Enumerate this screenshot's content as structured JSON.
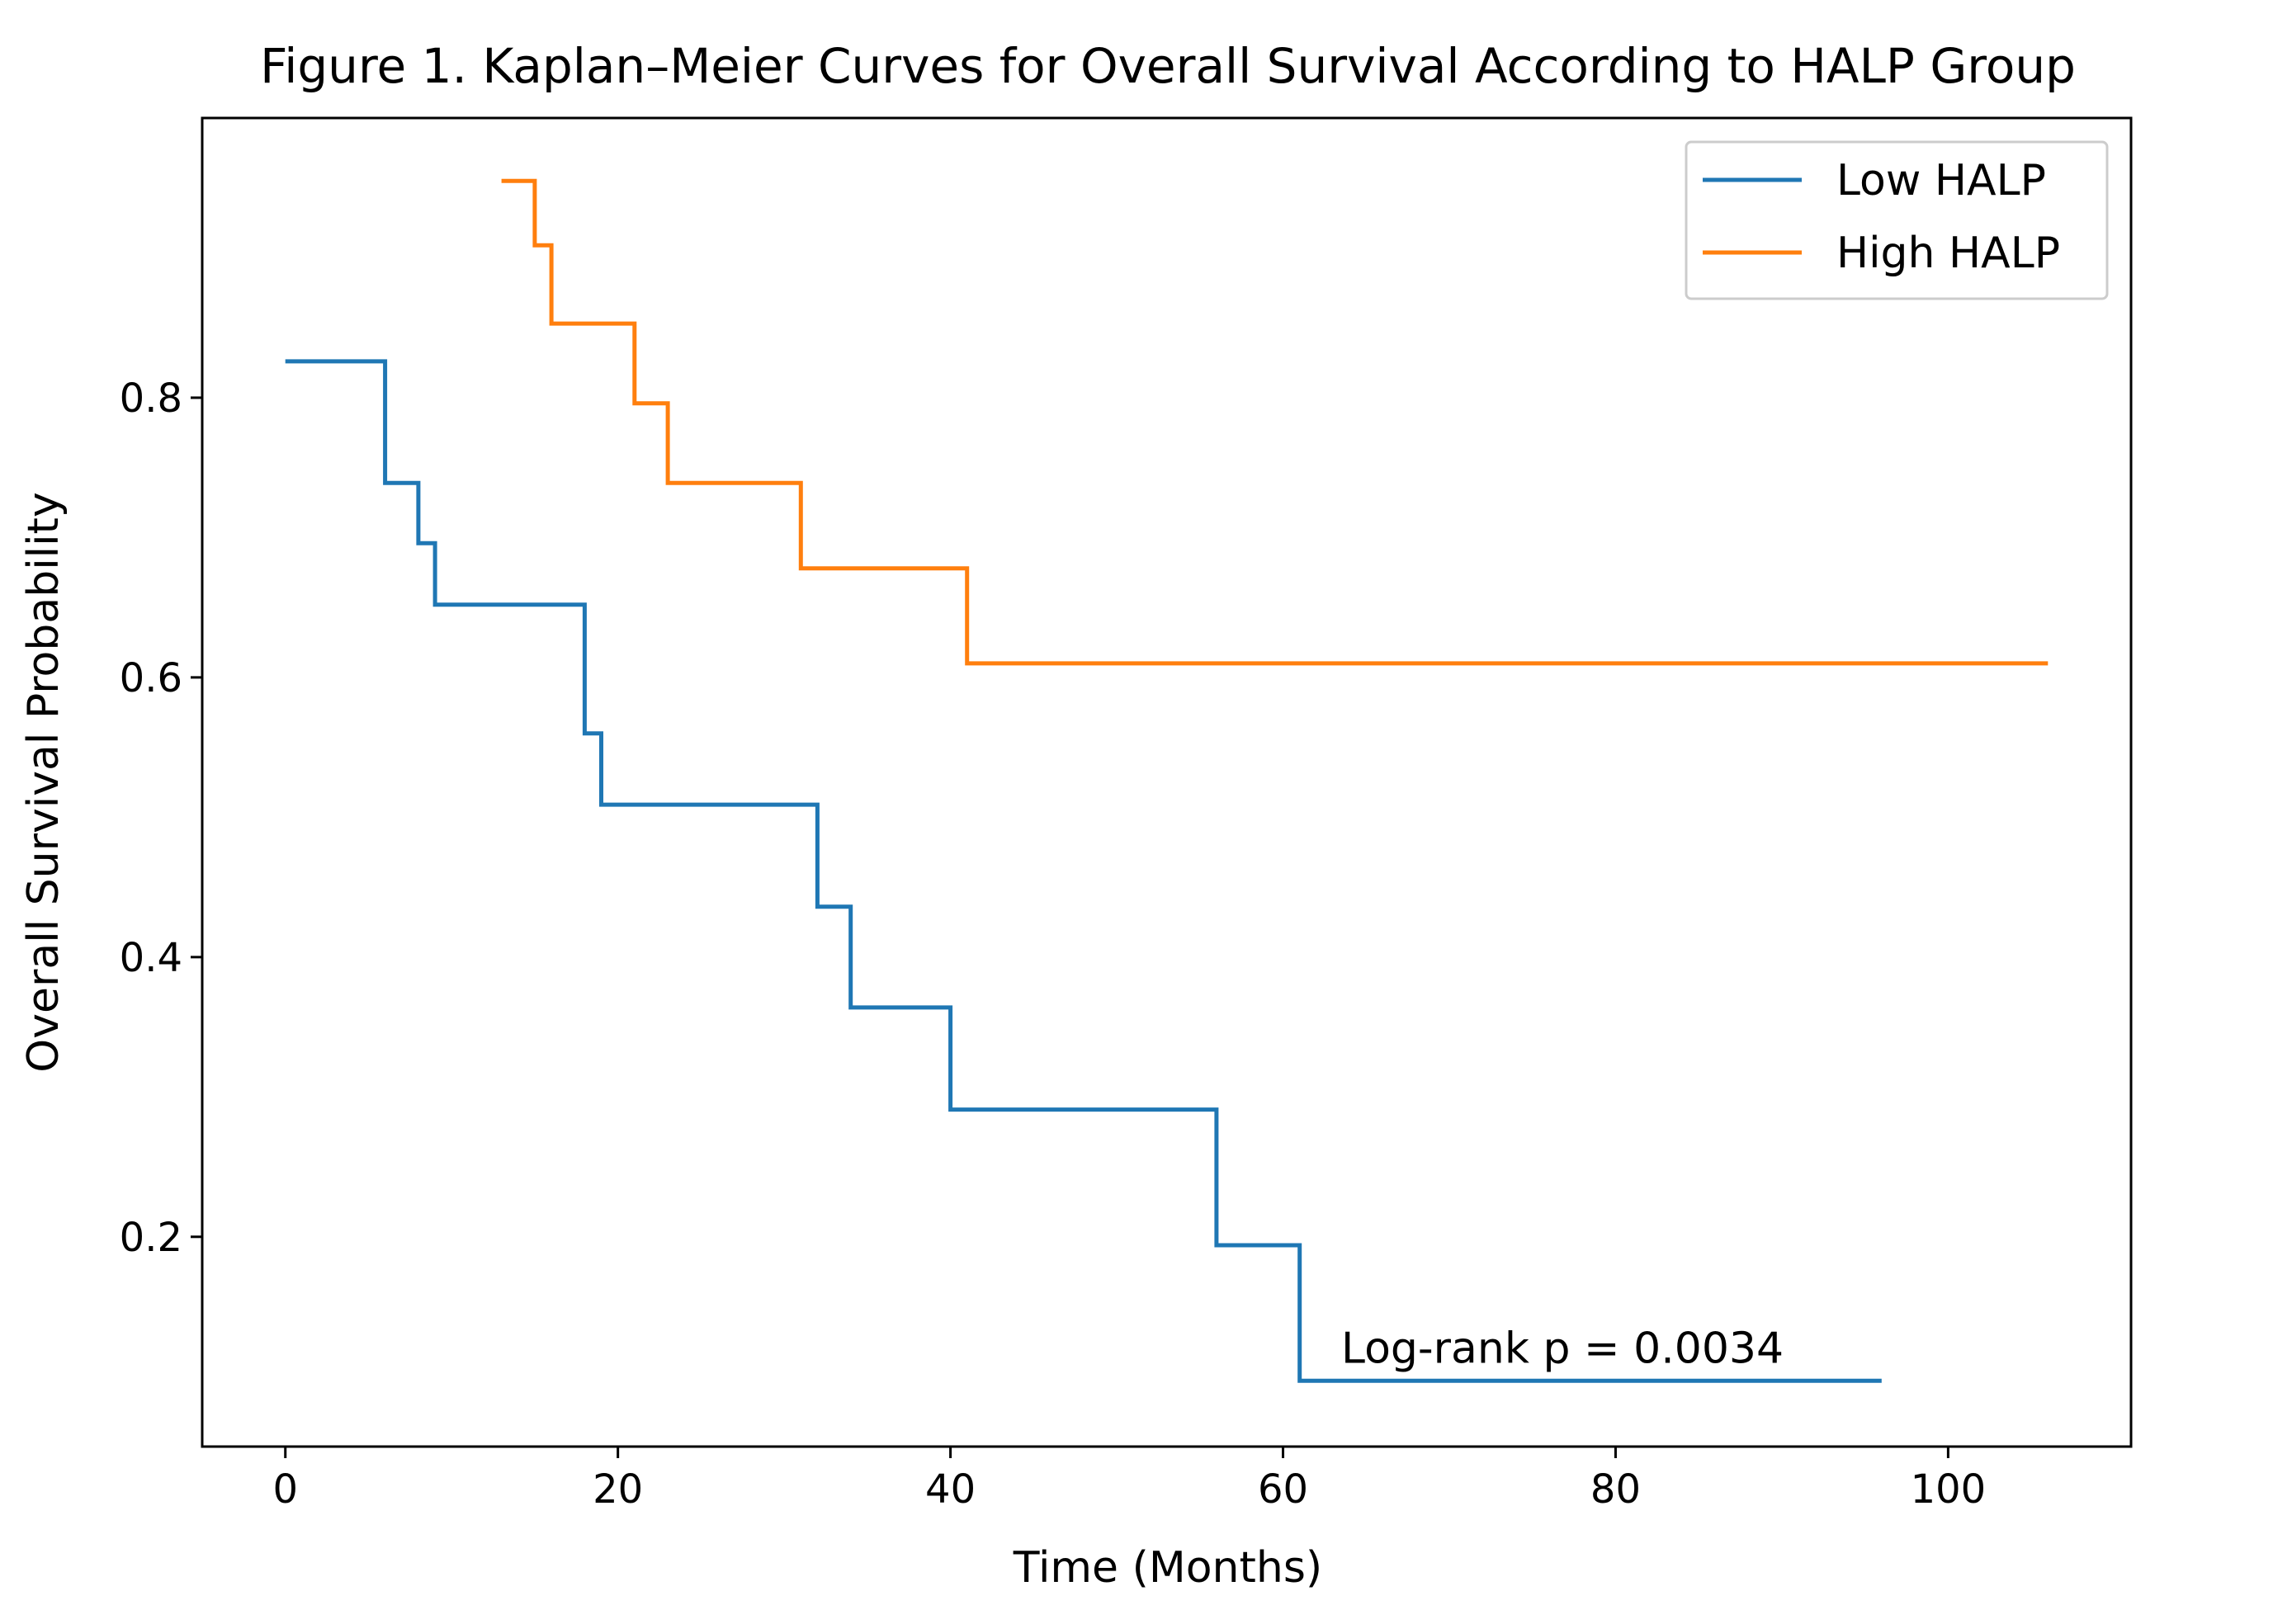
{
  "chart_data": {
    "type": "line",
    "subtype": "step",
    "title": "Figure 1. Kaplan–Meier Curves for Overall Survival According to HALP Group",
    "xlabel": "Time (Months)",
    "ylabel": "Overall Survival Probability",
    "xlim": [
      -5,
      111
    ],
    "ylim": [
      0.05,
      1.0
    ],
    "xticks": [
      0,
      20,
      40,
      60,
      80,
      100
    ],
    "xtick_labels": [
      "0",
      "20",
      "40",
      "60",
      "80",
      "100"
    ],
    "yticks": [
      0.2,
      0.4,
      0.6,
      0.8
    ],
    "ytick_labels": [
      "0.2",
      "0.4",
      "0.6",
      "0.8"
    ],
    "grid": false,
    "legend": {
      "position": "top-right"
    },
    "annotation": {
      "text": "Log-rank p = 0.0034",
      "x": 63.5,
      "y": 0.11
    },
    "series": [
      {
        "name": "Low HALP",
        "color": "#1f77b4",
        "x": [
          0,
          6,
          8,
          9,
          18,
          19,
          32,
          34,
          40,
          56,
          61,
          96
        ],
        "y": [
          0.826,
          0.739,
          0.696,
          0.652,
          0.56,
          0.509,
          0.436,
          0.364,
          0.291,
          0.194,
          0.097,
          0.097
        ]
      },
      {
        "name": "High HALP",
        "color": "#ff7f0e",
        "x": [
          13,
          15,
          16,
          21,
          23,
          31,
          41,
          106
        ],
        "y": [
          0.955,
          0.909,
          0.853,
          0.796,
          0.739,
          0.678,
          0.61,
          0.61
        ]
      }
    ]
  }
}
